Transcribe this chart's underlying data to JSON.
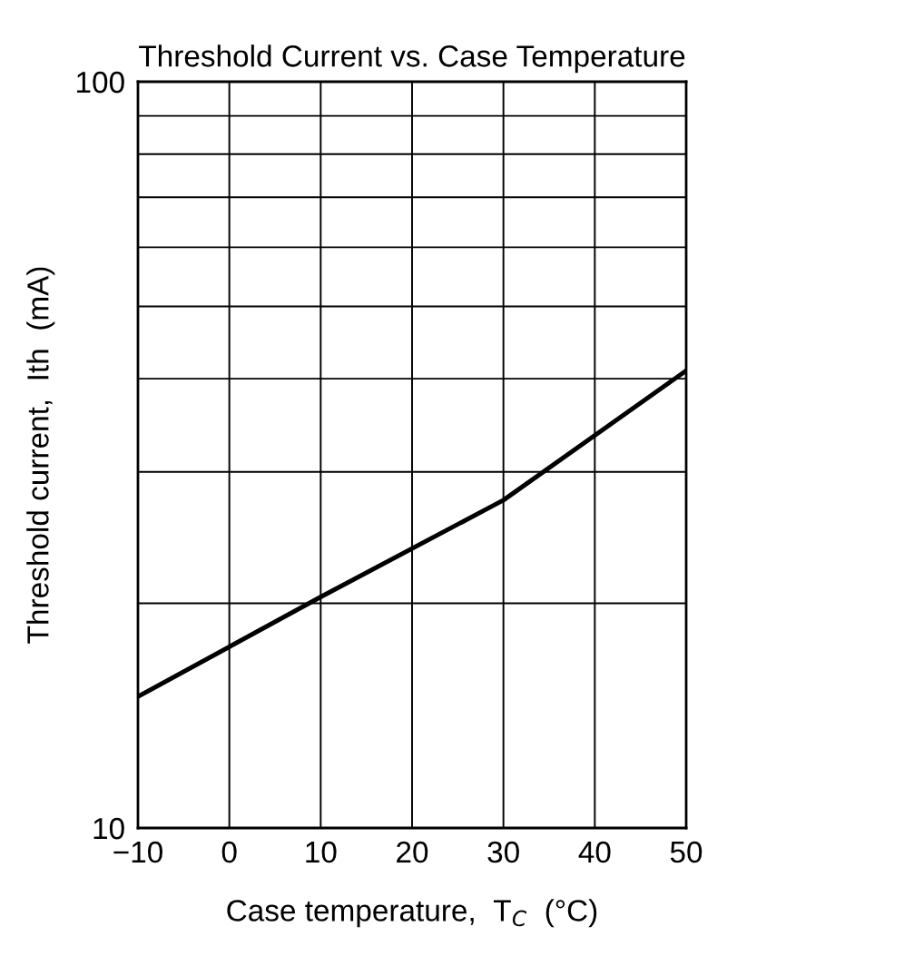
{
  "chart_data": {
    "type": "line",
    "title": "Threshold Current vs. Case Temperature",
    "xlabel": "Case temperature,  T$_{C}$  (°C)",
    "ylabel": "Threshold current,  Ith  (mA)",
    "x": [
      -10,
      10,
      30,
      50
    ],
    "series": [
      {
        "color": "#000000",
        "values": [
          15,
          20.4,
          27.5,
          41
        ]
      }
    ],
    "log": "y",
    "xlim": [
      -10,
      50
    ],
    "ylim": [
      10,
      100
    ],
    "xticks": [
      {
        "value": -10,
        "label": "−10"
      },
      0,
      10,
      20,
      30,
      40,
      50
    ],
    "yticks": [
      10,
      {
        "value": 20,
        "label": null
      },
      {
        "value": 30,
        "label": null
      },
      {
        "value": 40,
        "label": null
      },
      {
        "value": 50,
        "label": null
      },
      {
        "value": 60,
        "label": null
      },
      {
        "value": 70,
        "label": null
      },
      {
        "value": 80,
        "label": null
      },
      {
        "value": 90,
        "label": null
      },
      100
    ],
    "grid": true,
    "marker": "none",
    "line_style": "solid"
  }
}
